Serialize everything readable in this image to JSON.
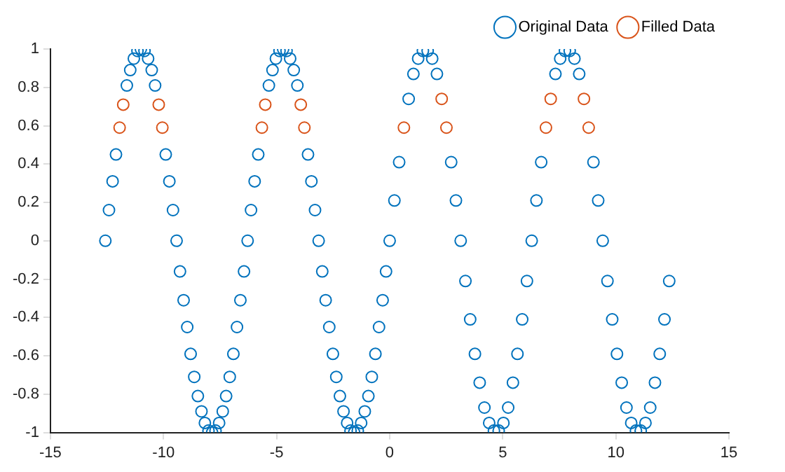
{
  "chart_data": {
    "type": "scatter",
    "marker": "circle",
    "legend": "top right",
    "grid": false,
    "xlim": [
      -15,
      15
    ],
    "xticks": [
      -15,
      -10,
      -5,
      0,
      5,
      10,
      15
    ],
    "ylim": [
      -1,
      1
    ],
    "yticks": [
      -1,
      -0.8,
      -0.6,
      -0.4,
      -0.2,
      0,
      0.2,
      0.4,
      0.6,
      0.8,
      1
    ],
    "series": [
      {
        "name": "Original Data",
        "color": "#0072bd",
        "x": [
          -12.57,
          -12.41,
          -12.25,
          -12.1,
          -11.62,
          -11.47,
          -11.31,
          -11.15,
          -11.0,
          -10.84,
          -10.68,
          -10.52,
          -10.37,
          -9.9,
          -9.74,
          -9.58,
          -9.42,
          -9.27,
          -9.11,
          -8.95,
          -8.8,
          -8.64,
          -8.48,
          -8.32,
          -8.17,
          -8.01,
          -7.85,
          -7.7,
          -7.54,
          -7.38,
          -7.23,
          -7.07,
          -6.91,
          -6.75,
          -6.6,
          -6.44,
          -6.28,
          -6.13,
          -5.97,
          -5.81,
          -5.34,
          -5.18,
          -5.03,
          -4.87,
          -4.71,
          -4.56,
          -4.4,
          -4.24,
          -4.08,
          -3.61,
          -3.46,
          -3.3,
          -3.14,
          -2.98,
          -2.83,
          -2.67,
          -2.51,
          -2.36,
          -2.2,
          -2.04,
          -1.88,
          -1.73,
          -1.57,
          -1.41,
          -1.26,
          -1.1,
          -0.94,
          -0.79,
          -0.63,
          -0.47,
          -0.31,
          -0.16,
          0,
          0.21,
          0.42,
          0.84,
          1.05,
          1.26,
          1.47,
          1.68,
          1.88,
          2.09,
          2.72,
          2.93,
          3.14,
          3.35,
          3.56,
          3.77,
          3.98,
          4.19,
          4.4,
          4.61,
          4.82,
          5.03,
          5.24,
          5.45,
          5.65,
          5.86,
          6.07,
          6.28,
          6.49,
          6.7,
          7.33,
          7.54,
          7.75,
          7.96,
          8.17,
          8.38,
          9.01,
          9.22,
          9.42,
          9.63,
          9.84,
          10.05,
          10.26,
          10.47,
          10.68,
          10.89,
          11.1,
          11.31,
          11.52,
          11.73,
          11.94,
          12.15,
          12.36
        ],
        "values": [
          0,
          0.16,
          0.31,
          0.45,
          0.81,
          0.89,
          0.95,
          0.99,
          1,
          0.99,
          0.95,
          0.89,
          0.81,
          0.45,
          0.31,
          0.16,
          0,
          -0.16,
          -0.31,
          -0.45,
          -0.59,
          -0.71,
          -0.81,
          -0.89,
          -0.95,
          -0.99,
          -1,
          -0.99,
          -0.95,
          -0.89,
          -0.81,
          -0.71,
          -0.59,
          -0.45,
          -0.31,
          -0.16,
          0,
          0.16,
          0.31,
          0.45,
          0.81,
          0.89,
          0.95,
          0.99,
          1,
          0.99,
          0.95,
          0.89,
          0.81,
          0.45,
          0.31,
          0.16,
          0,
          -0.16,
          -0.31,
          -0.45,
          -0.59,
          -0.71,
          -0.81,
          -0.89,
          -0.95,
          -0.99,
          -1,
          -0.99,
          -0.95,
          -0.89,
          -0.81,
          -0.71,
          -0.59,
          -0.45,
          -0.31,
          -0.16,
          0,
          0.21,
          0.41,
          0.74,
          0.87,
          0.95,
          0.99,
          0.99,
          0.95,
          0.87,
          0.41,
          0.21,
          0,
          -0.21,
          -0.41,
          -0.59,
          -0.74,
          -0.87,
          -0.95,
          -0.99,
          -0.99,
          -0.95,
          -0.87,
          -0.74,
          -0.59,
          -0.41,
          -0.21,
          0,
          0.21,
          0.41,
          0.87,
          0.95,
          0.99,
          0.99,
          0.95,
          0.87,
          0.41,
          0.21,
          0,
          -0.21,
          -0.41,
          -0.59,
          -0.74,
          -0.87,
          -0.95,
          -0.99,
          -0.99,
          -0.95,
          -0.87,
          -0.74,
          -0.59,
          -0.41,
          -0.21
        ]
      },
      {
        "name": "Filled Data",
        "color": "#d95319",
        "x": [
          -11.94,
          -11.78,
          -10.21,
          -10.05,
          -5.65,
          -5.5,
          -3.93,
          -3.77,
          0.63,
          2.3,
          2.51,
          6.91,
          7.12,
          8.59,
          8.8
        ],
        "values": [
          0.59,
          0.71,
          0.71,
          0.59,
          0.59,
          0.71,
          0.71,
          0.59,
          0.59,
          0.74,
          0.59,
          0.59,
          0.74,
          0.74,
          0.59
        ]
      }
    ]
  }
}
